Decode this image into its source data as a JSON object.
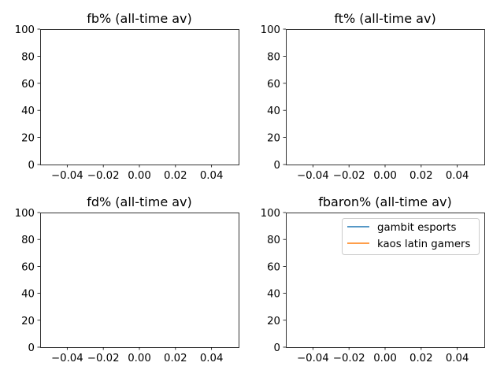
{
  "chart_data": [
    {
      "type": "line",
      "title": "fb% (all-time av)",
      "xlabel": "",
      "ylabel": "",
      "xlim": [
        -0.055,
        0.055
      ],
      "ylim": [
        0,
        100
      ],
      "x_ticks": [
        "−0.04",
        "−0.02",
        "0.00",
        "0.02",
        "0.04"
      ],
      "y_ticks": [
        "0",
        "20",
        "40",
        "60",
        "80",
        "100"
      ],
      "grid": false,
      "series": []
    },
    {
      "type": "line",
      "title": "ft% (all-time av)",
      "xlabel": "",
      "ylabel": "",
      "xlim": [
        -0.055,
        0.055
      ],
      "ylim": [
        0,
        100
      ],
      "x_ticks": [
        "−0.04",
        "−0.02",
        "0.00",
        "0.02",
        "0.04"
      ],
      "y_ticks": [
        "0",
        "20",
        "40",
        "60",
        "80",
        "100"
      ],
      "grid": false,
      "series": []
    },
    {
      "type": "line",
      "title": "fd% (all-time av)",
      "xlabel": "",
      "ylabel": "",
      "xlim": [
        -0.055,
        0.055
      ],
      "ylim": [
        0,
        100
      ],
      "x_ticks": [
        "−0.04",
        "−0.02",
        "0.00",
        "0.02",
        "0.04"
      ],
      "y_ticks": [
        "0",
        "20",
        "40",
        "60",
        "80",
        "100"
      ],
      "grid": false,
      "series": []
    },
    {
      "type": "line",
      "title": "fbaron% (all-time av)",
      "xlabel": "",
      "ylabel": "",
      "xlim": [
        -0.055,
        0.055
      ],
      "ylim": [
        0,
        100
      ],
      "x_ticks": [
        "−0.04",
        "−0.02",
        "0.00",
        "0.02",
        "0.04"
      ],
      "y_ticks": [
        "0",
        "20",
        "40",
        "60",
        "80",
        "100"
      ],
      "grid": false,
      "legend": {
        "placement": "top-right",
        "entries": [
          {
            "name": "gambit esports",
            "color": "#1f77b4"
          },
          {
            "name": "kaos latin gamers",
            "color": "#ff7f0e"
          }
        ]
      },
      "series": [
        {
          "name": "gambit esports",
          "color": "#1f77b4",
          "x": [],
          "y": []
        },
        {
          "name": "kaos latin gamers",
          "color": "#ff7f0e",
          "x": [],
          "y": []
        }
      ]
    }
  ]
}
